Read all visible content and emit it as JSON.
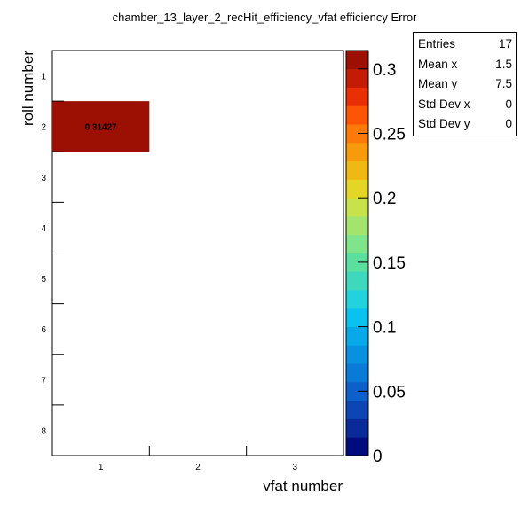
{
  "chart_data": {
    "type": "heatmap",
    "title": "chamber_13_layer_2_recHit_efficiency_vfat efficiency Error",
    "xlabel": "vfat number",
    "ylabel": "roll number",
    "x_categories": [
      "1",
      "2",
      "3"
    ],
    "y_categories": [
      "1",
      "2",
      "3",
      "4",
      "5",
      "6",
      "7",
      "8"
    ],
    "cells": [
      {
        "x": "1",
        "y": "2",
        "value": 0.31427,
        "label": "0.31427"
      }
    ],
    "zlim": [
      0,
      0.3143
    ],
    "z_ticks": [
      {
        "value": 0,
        "label": "0"
      },
      {
        "value": 0.05,
        "label": "0.05"
      },
      {
        "value": 0.1,
        "label": "0.1"
      },
      {
        "value": 0.15,
        "label": "0.15"
      },
      {
        "value": 0.2,
        "label": "0.2"
      },
      {
        "value": 0.25,
        "label": "0.25"
      },
      {
        "value": 0.3,
        "label": "0.3"
      }
    ],
    "palette": [
      "#000c7d",
      "#0a2a99",
      "#0d45b4",
      "#0c60c9",
      "#0a7ad7",
      "#0891df",
      "#07a9e8",
      "#0bc1ef",
      "#22d3de",
      "#3ed9bd",
      "#5bdf9f",
      "#7fe48a",
      "#a3e46f",
      "#c8e24b",
      "#e3d626",
      "#f0b812",
      "#f79a0b",
      "#fb7a08",
      "#fc5504",
      "#e83002",
      "#c41c03",
      "#9c0f03"
    ],
    "legend": "right"
  },
  "stats": {
    "rows": [
      {
        "label": "Entries",
        "value": "17"
      },
      {
        "label": "Mean x",
        "value": "1.5"
      },
      {
        "label": "Mean y",
        "value": "7.5"
      },
      {
        "label": "Std Dev x",
        "value": "0"
      },
      {
        "label": "Std Dev y",
        "value": "0"
      }
    ]
  }
}
